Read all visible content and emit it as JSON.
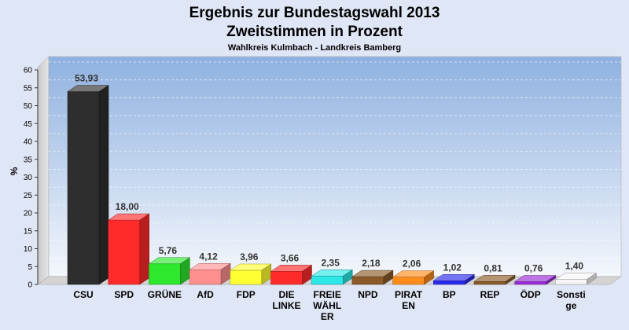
{
  "chart_data": {
    "type": "bar",
    "title_line1": "Ergebnis zur Bundestagswahl 2013",
    "title_line2": "Zweitstimmen in Prozent",
    "subtitle": "Wahlkreis Kulmbach - Landkreis Bamberg",
    "xlabel": "",
    "ylabel": "%",
    "ylim": [
      0,
      60
    ],
    "yticks": [
      "0",
      "5",
      "10",
      "15",
      "20",
      "25",
      "30",
      "35",
      "40",
      "45",
      "50",
      "55",
      "60"
    ],
    "grid": true,
    "legend": "none",
    "categories": [
      {
        "label": [
          "CSU"
        ]
      },
      {
        "label": [
          "SPD"
        ]
      },
      {
        "label": [
          "GRÜNE"
        ]
      },
      {
        "label": [
          "AfD"
        ]
      },
      {
        "label": [
          "FDP"
        ]
      },
      {
        "label": [
          "DIE",
          "LINKE"
        ]
      },
      {
        "label": [
          "FREIE",
          "WÄHL",
          "ER"
        ]
      },
      {
        "label": [
          "NPD"
        ]
      },
      {
        "label": [
          "PIRAT",
          "EN"
        ]
      },
      {
        "label": [
          "BP"
        ]
      },
      {
        "label": [
          "REP"
        ]
      },
      {
        "label": [
          "ÖDP"
        ]
      },
      {
        "label": [
          "Sonsti",
          "ge"
        ]
      }
    ],
    "values": [
      53.93,
      18.0,
      5.76,
      4.12,
      3.96,
      3.66,
      2.35,
      2.18,
      2.06,
      1.02,
      0.81,
      0.76,
      1.4
    ],
    "value_labels": [
      "53,93",
      "18,00",
      "5,76",
      "4,12",
      "3,96",
      "3,66",
      "2,35",
      "2,18",
      "2,06",
      "1,02",
      "0,81",
      "0,76",
      "1,40"
    ],
    "colors": [
      "#2e2e2e",
      "#ff2a2a",
      "#2ee82e",
      "#ff9090",
      "#ffff33",
      "#ff2a2a",
      "#2ee8e8",
      "#8a5a28",
      "#ff8c1a",
      "#2a2aee",
      "#8a5a28",
      "#9a2ad8",
      "#f5f5f5"
    ]
  }
}
